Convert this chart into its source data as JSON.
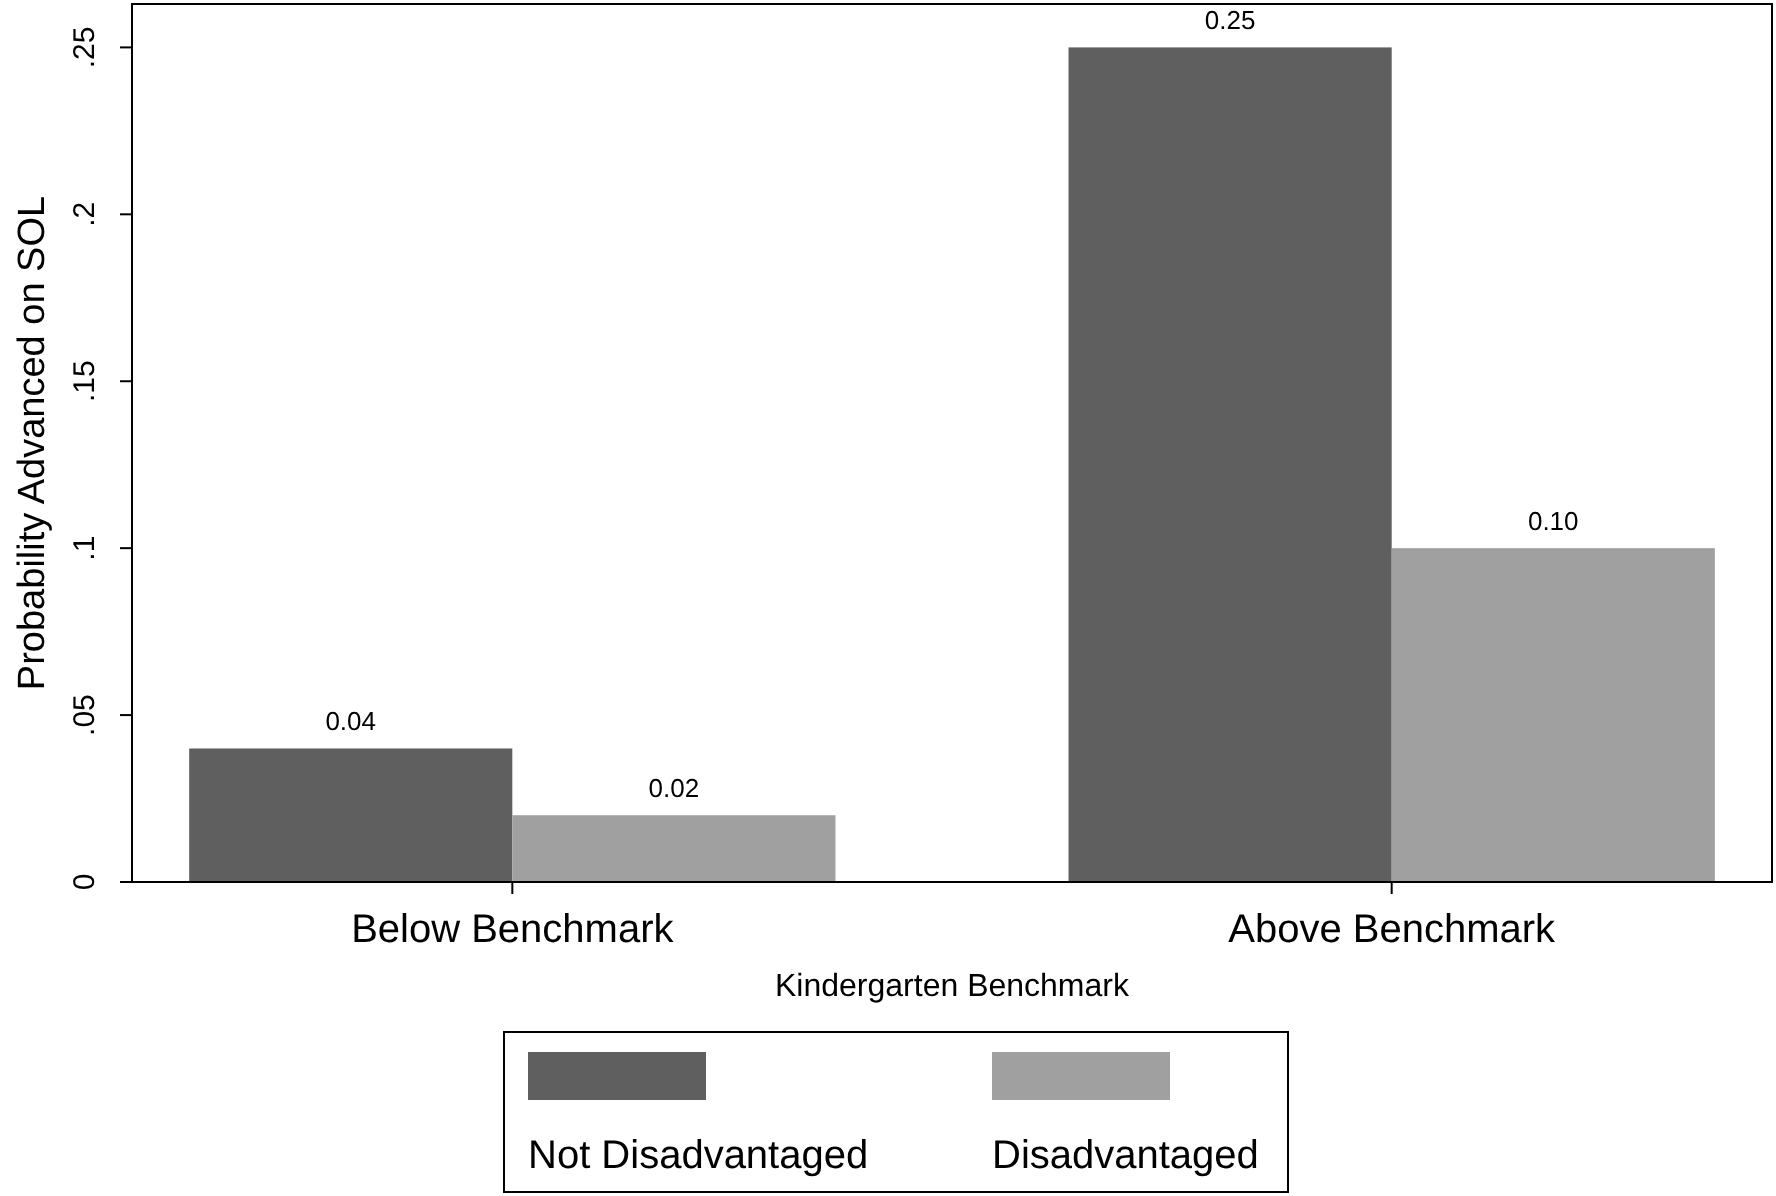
{
  "chart_data": {
    "type": "bar",
    "xlabel": "Kindergarten Benchmark",
    "ylabel": "Probability Advanced on SOL",
    "categories": [
      "Below Benchmark",
      "Above Benchmark"
    ],
    "series": [
      {
        "name": "Not Disadvantaged",
        "color": "#5f5f5f",
        "values": [
          0.04,
          0.25
        ],
        "value_labels": [
          "0.04",
          "0.25"
        ]
      },
      {
        "name": "Disadvantaged",
        "color": "#a0a0a0",
        "values": [
          0.02,
          0.1
        ],
        "value_labels": [
          "0.02",
          "0.10"
        ]
      }
    ],
    "ylim": [
      0,
      0.263
    ],
    "yticks": [
      {
        "value": 0,
        "label": "0"
      },
      {
        "value": 0.05,
        "label": ".05"
      },
      {
        "value": 0.1,
        "label": ".1"
      },
      {
        "value": 0.15,
        "label": ".15"
      },
      {
        "value": 0.2,
        "label": ".2"
      },
      {
        "value": 0.25,
        "label": ".25"
      }
    ],
    "grid": false,
    "legend": "bottom"
  }
}
